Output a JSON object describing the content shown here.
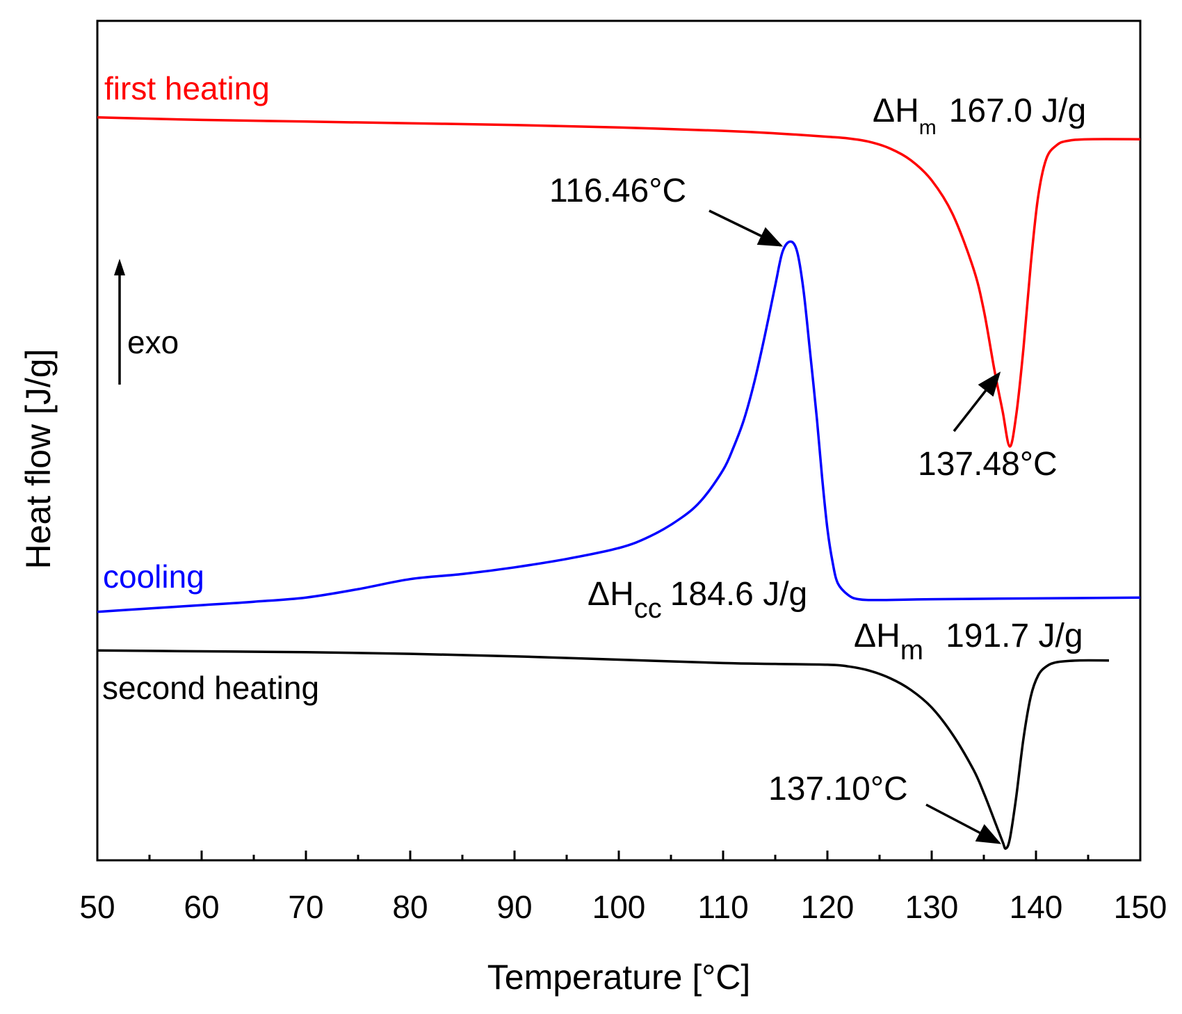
{
  "chart_data": {
    "type": "line",
    "xlabel": "Temperature [°C]",
    "ylabel": "Heat flow [J/g]",
    "xlim": [
      50,
      150
    ],
    "x_ticks": [
      "50",
      "60",
      "70",
      "80",
      "90",
      "100",
      "110",
      "120",
      "130",
      "140",
      "150"
    ],
    "y_units": "arbitrary (0 = bottom of plot, 100 = top of plot)",
    "ylim": [
      0,
      100
    ],
    "grid": false,
    "exo_label": "exo",
    "series": [
      {
        "name": "first heating",
        "color": "#ff0000",
        "points": [
          [
            50,
            88.5
          ],
          [
            60,
            88.2
          ],
          [
            70,
            88
          ],
          [
            80,
            87.8
          ],
          [
            90,
            87.6
          ],
          [
            100,
            87.3
          ],
          [
            110,
            86.9
          ],
          [
            115,
            86.6
          ],
          [
            120,
            86.2
          ],
          [
            122,
            86.0
          ],
          [
            124,
            85.6
          ],
          [
            126,
            84.8
          ],
          [
            128,
            83.4
          ],
          [
            130,
            81.0
          ],
          [
            132,
            77.0
          ],
          [
            134,
            70.5
          ],
          [
            135,
            65.5
          ],
          [
            136,
            58.5
          ],
          [
            136.8,
            53.5
          ],
          [
            137.48,
            49.3
          ],
          [
            138.1,
            53.0
          ],
          [
            138.8,
            61.0
          ],
          [
            139.5,
            71.0
          ],
          [
            140.2,
            79.0
          ],
          [
            141,
            83.6
          ],
          [
            142,
            85.2
          ],
          [
            143,
            85.7
          ],
          [
            145,
            85.9
          ],
          [
            150,
            85.9
          ]
        ]
      },
      {
        "name": "cooling",
        "color": "#0000ff",
        "points": [
          [
            50,
            29.6
          ],
          [
            55,
            30.0
          ],
          [
            60,
            30.4
          ],
          [
            65,
            30.8
          ],
          [
            70,
            31.3
          ],
          [
            75,
            32.3
          ],
          [
            80,
            33.5
          ],
          [
            85,
            34.1
          ],
          [
            90,
            34.9
          ],
          [
            95,
            35.9
          ],
          [
            100,
            37.2
          ],
          [
            103,
            38.6
          ],
          [
            106,
            40.8
          ],
          [
            108,
            43.0
          ],
          [
            110,
            46.5
          ],
          [
            111,
            49.2
          ],
          [
            112,
            52.5
          ],
          [
            113,
            57.0
          ],
          [
            114,
            62.5
          ],
          [
            115,
            68.5
          ],
          [
            115.7,
            72.5
          ],
          [
            116.46,
            73.7
          ],
          [
            117.1,
            72.5
          ],
          [
            117.7,
            68.0
          ],
          [
            118.3,
            61.0
          ],
          [
            119,
            52.5
          ],
          [
            119.5,
            45.5
          ],
          [
            120,
            39.5
          ],
          [
            120.5,
            35.5
          ],
          [
            121,
            33.0
          ],
          [
            122,
            31.6
          ],
          [
            123,
            31.1
          ],
          [
            125,
            31.0
          ],
          [
            130,
            31.1
          ],
          [
            140,
            31.2
          ],
          [
            150,
            31.3
          ]
        ]
      },
      {
        "name": "second heating",
        "color": "#000000",
        "points": [
          [
            50,
            25.0
          ],
          [
            60,
            24.9
          ],
          [
            70,
            24.8
          ],
          [
            80,
            24.6
          ],
          [
            90,
            24.3
          ],
          [
            100,
            23.9
          ],
          [
            110,
            23.5
          ],
          [
            115,
            23.4
          ],
          [
            120,
            23.3
          ],
          [
            122,
            23.1
          ],
          [
            124,
            22.6
          ],
          [
            126,
            21.7
          ],
          [
            128,
            20.3
          ],
          [
            130,
            18.2
          ],
          [
            132,
            15.0
          ],
          [
            134,
            10.8
          ],
          [
            135,
            8.0
          ],
          [
            136,
            4.8
          ],
          [
            136.8,
            2.2
          ],
          [
            137.1,
            1.4
          ],
          [
            137.5,
            2.6
          ],
          [
            138.1,
            7.5
          ],
          [
            138.8,
            14.5
          ],
          [
            139.5,
            19.5
          ],
          [
            140.2,
            22.0
          ],
          [
            141,
            23.1
          ],
          [
            142,
            23.6
          ],
          [
            144,
            23.8
          ],
          [
            147,
            23.8
          ]
        ]
      }
    ],
    "annotations": [
      {
        "id": "first",
        "dh_main": "ΔH",
        "dh_sub": "m",
        "dh_value": "167.0 J/g",
        "peak_label": "137.48°C",
        "peak_x": 137.48,
        "peak_y": 49.3
      },
      {
        "id": "cooling",
        "dh_main": "ΔH",
        "dh_sub": "cc",
        "dh_value": "184.6 J/g",
        "peak_label": "116.46°C",
        "peak_x": 116.46,
        "peak_y": 73.7
      },
      {
        "id": "second",
        "dh_main": "ΔH",
        "dh_sub": "m",
        "dh_value": "191.7 J/g",
        "peak_label": "137.10°C",
        "peak_x": 137.1,
        "peak_y": 1.4
      }
    ]
  }
}
